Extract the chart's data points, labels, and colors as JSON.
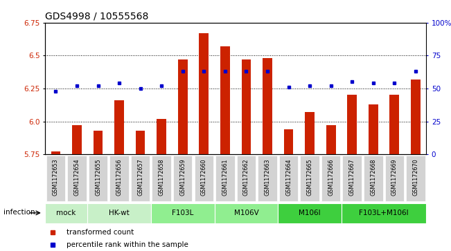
{
  "title": "GDS4998 / 10555568",
  "samples": [
    "GSM1172653",
    "GSM1172654",
    "GSM1172655",
    "GSM1172656",
    "GSM1172657",
    "GSM1172658",
    "GSM1172659",
    "GSM1172660",
    "GSM1172661",
    "GSM1172662",
    "GSM1172663",
    "GSM1172664",
    "GSM1172665",
    "GSM1172666",
    "GSM1172667",
    "GSM1172668",
    "GSM1172669",
    "GSM1172670"
  ],
  "bar_values": [
    5.77,
    5.97,
    5.93,
    6.16,
    5.93,
    6.02,
    6.47,
    6.67,
    6.57,
    6.47,
    6.48,
    5.94,
    6.07,
    5.97,
    6.2,
    6.13,
    6.2,
    6.32
  ],
  "percentile_values": [
    48,
    52,
    52,
    54,
    50,
    52,
    63,
    63,
    63,
    63,
    63,
    51,
    52,
    52,
    55,
    54,
    54,
    63
  ],
  "groups": [
    {
      "label": "mock",
      "start": 0,
      "end": 2,
      "color": "#c8f0c8"
    },
    {
      "label": "HK-wt",
      "start": 2,
      "end": 5,
      "color": "#c8f0c8"
    },
    {
      "label": "F103L",
      "start": 5,
      "end": 8,
      "color": "#90ee90"
    },
    {
      "label": "M106V",
      "start": 8,
      "end": 11,
      "color": "#90ee90"
    },
    {
      "label": "M106I",
      "start": 11,
      "end": 14,
      "color": "#3ecf3e"
    },
    {
      "label": "F103L+M106I",
      "start": 14,
      "end": 18,
      "color": "#3ecf3e"
    }
  ],
  "bar_color": "#cc2200",
  "marker_color": "#0000cc",
  "ymin": 5.75,
  "ymax": 6.75,
  "y_ticks": [
    5.75,
    6.0,
    6.25,
    6.5,
    6.75
  ],
  "right_y_ticks": [
    0,
    25,
    50,
    75,
    100
  ],
  "right_y_labels": [
    "0",
    "25",
    "50",
    "75",
    "100%"
  ],
  "title_fontsize": 10,
  "tick_fontsize": 7.5,
  "infection_label": "infection",
  "legend_items": [
    {
      "label": "transformed count",
      "color": "#cc2200"
    },
    {
      "label": "percentile rank within the sample",
      "color": "#0000cc"
    }
  ]
}
